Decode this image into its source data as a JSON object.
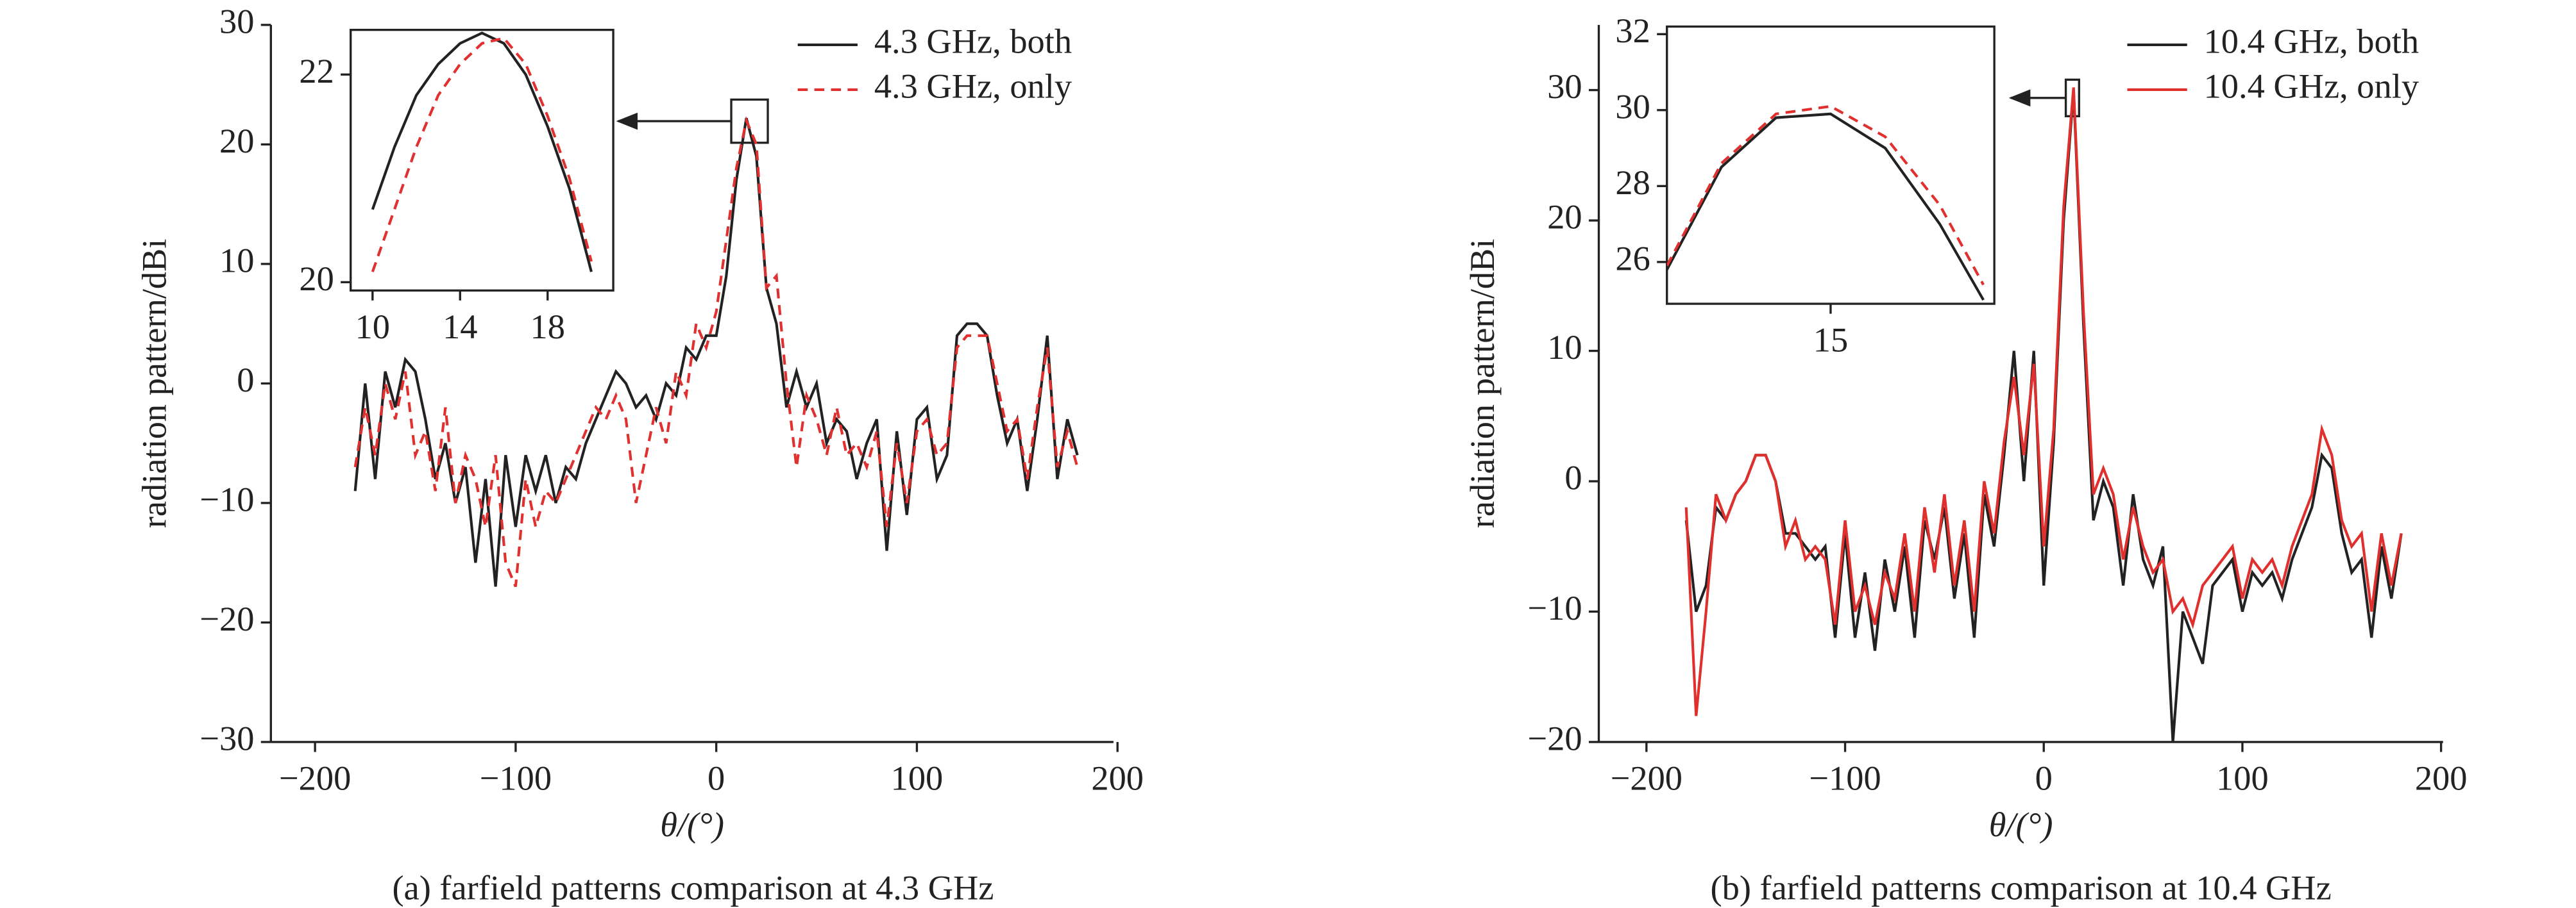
{
  "chart_data": [
    {
      "type": "line",
      "caption": "(a) farfield patterns comparison at 4.3 GHz",
      "xlabel": "θ/(°)",
      "ylabel": "radiation pattern/dBi",
      "xlim": [
        -222,
        198
      ],
      "ylim": [
        -30,
        30
      ],
      "xticks": [
        {
          "value": -200,
          "label": "−200"
        },
        {
          "value": -100,
          "label": "−100"
        },
        0,
        100,
        200
      ],
      "yticks": [
        {
          "value": -30,
          "label": "−30"
        },
        {
          "value": -20,
          "label": "−20"
        },
        {
          "value": -10,
          "label": "−10"
        },
        0,
        10,
        20,
        30
      ],
      "legend": "upper right",
      "x": [
        -180,
        -175,
        -170,
        -165,
        -160,
        -155,
        -150,
        -145,
        -140,
        -135,
        -130,
        -125,
        -120,
        -115,
        -110,
        -105,
        -100,
        -95,
        -90,
        -85,
        -80,
        -75,
        -70,
        -65,
        -60,
        -55,
        -50,
        -45,
        -40,
        -35,
        -30,
        -25,
        -20,
        -15,
        -10,
        -5,
        0,
        5,
        10,
        15,
        20,
        25,
        30,
        35,
        40,
        45,
        50,
        55,
        60,
        65,
        70,
        75,
        80,
        85,
        90,
        95,
        100,
        105,
        110,
        115,
        120,
        125,
        130,
        135,
        140,
        145,
        150,
        155,
        160,
        165,
        170,
        175,
        180
      ],
      "series": [
        {
          "name": "4.3 GHz, both",
          "color": "#222222",
          "dash": false,
          "values": [
            -9,
            0,
            -8,
            1,
            -2,
            2,
            1,
            -3,
            -8,
            -5,
            -10,
            -7,
            -15,
            -8,
            -17,
            -6,
            -12,
            -6,
            -9,
            -6,
            -10,
            -7,
            -8,
            -5,
            -3,
            -1,
            1,
            0,
            -2,
            -1,
            -3,
            0,
            -1,
            3,
            2,
            4,
            4,
            9,
            17,
            22.2,
            19,
            8,
            5,
            -2,
            1,
            -2,
            0,
            -5,
            -3,
            -4,
            -8,
            -5,
            -3,
            -14,
            -4,
            -11,
            -3,
            -2,
            -8,
            -6,
            4,
            5,
            5,
            4,
            -1,
            -5,
            -3,
            -9,
            -3,
            4,
            -8,
            -3,
            -6
          ]
        },
        {
          "name": "4.3 GHz, only",
          "color": "#e03030",
          "dash": true,
          "values": [
            -7,
            -2,
            -6,
            0,
            -3,
            1,
            -6,
            -4,
            -9,
            -2,
            -10,
            -6,
            -8,
            -12,
            -6,
            -15,
            -17,
            -8,
            -12,
            -9,
            -10,
            -8,
            -6,
            -4,
            -2,
            -3,
            -1,
            -3,
            -10,
            -6,
            -2,
            -5,
            1,
            -1,
            5,
            3,
            6,
            12,
            18,
            22,
            20,
            8,
            9,
            0,
            -7,
            -1,
            -3,
            -6,
            -2,
            -6,
            -5,
            -7,
            -4,
            -12,
            -5,
            -10,
            -4,
            -3,
            -6,
            -5,
            3,
            4,
            4,
            4,
            0,
            -4,
            -3,
            -8,
            -2,
            3,
            -7,
            -4,
            -7
          ]
        }
      ]
    },
    {
      "type": "line",
      "xlim": [
        9,
        21
      ],
      "ylim": [
        19.92,
        22.43
      ],
      "xticks": [
        10,
        14,
        18
      ],
      "yticks": [
        20,
        22
      ],
      "x": [
        10,
        11,
        12,
        13,
        14,
        15,
        16,
        17,
        18,
        19,
        20
      ],
      "series": [
        {
          "color": "#222222",
          "dash": false,
          "values": [
            20.7,
            21.3,
            21.8,
            22.1,
            22.3,
            22.4,
            22.3,
            22.0,
            21.5,
            20.9,
            20.1
          ]
        },
        {
          "color": "#e03030",
          "dash": true,
          "values": [
            20.1,
            20.7,
            21.3,
            21.8,
            22.1,
            22.3,
            22.35,
            22.1,
            21.6,
            21.0,
            20.2
          ]
        }
      ]
    },
    {
      "type": "line",
      "caption": "(b) farfield patterns comparison at 10.4 GHz",
      "xlabel": "θ/(°)",
      "ylabel": "radiation pattern/dBi",
      "xlim": [
        -224,
        201
      ],
      "ylim": [
        -20,
        35
      ],
      "xticks": [
        {
          "value": -200,
          "label": "−200"
        },
        {
          "value": -100,
          "label": "−100"
        },
        0,
        100,
        200
      ],
      "yticks": [
        {
          "value": -20,
          "label": "−20"
        },
        {
          "value": -10,
          "label": "−10"
        },
        0,
        10,
        20,
        30
      ],
      "legend": "upper right",
      "x": [
        -180,
        -175,
        -170,
        -165,
        -160,
        -155,
        -150,
        -145,
        -140,
        -135,
        -130,
        -125,
        -120,
        -115,
        -110,
        -105,
        -100,
        -95,
        -90,
        -85,
        -80,
        -75,
        -70,
        -65,
        -60,
        -55,
        -50,
        -45,
        -40,
        -35,
        -30,
        -25,
        -20,
        -15,
        -10,
        -5,
        0,
        5,
        10,
        15,
        20,
        25,
        30,
        35,
        40,
        45,
        50,
        55,
        60,
        65,
        70,
        75,
        80,
        85,
        90,
        95,
        100,
        105,
        110,
        115,
        120,
        125,
        130,
        135,
        140,
        145,
        150,
        155,
        160,
        165,
        170,
        175,
        180
      ],
      "series": [
        {
          "name": "10.4 GHz, both",
          "color": "#222222",
          "dash": false,
          "values": [
            -3,
            -10,
            -8,
            -2,
            -3,
            -1,
            0,
            2,
            2,
            0,
            -4,
            -4,
            -5,
            -6,
            -5,
            -12,
            -4,
            -12,
            -7,
            -13,
            -6,
            -10,
            -5,
            -12,
            -3,
            -6,
            -2,
            -9,
            -4,
            -12,
            -1,
            -5,
            2,
            10,
            0,
            10,
            -8,
            3,
            20,
            30,
            12,
            -3,
            0,
            -2,
            -8,
            -1,
            -6,
            -8,
            -5,
            -20,
            -10,
            -12,
            -14,
            -8,
            -7,
            -6,
            -10,
            -7,
            -8,
            -7,
            -9,
            -6,
            -4,
            -2,
            2,
            1,
            -4,
            -7,
            -6,
            -12,
            -5,
            -9,
            -4
          ]
        },
        {
          "name": "10.4 GHz, only",
          "color": "#e0302e",
          "dash": false,
          "values": [
            -2,
            -18,
            -10,
            -1,
            -3,
            -1,
            0,
            2,
            2,
            0,
            -5,
            -3,
            -6,
            -5,
            -6,
            -11,
            -3,
            -10,
            -8,
            -11,
            -7,
            -9,
            -4,
            -10,
            -2,
            -7,
            -1,
            -8,
            -3,
            -10,
            0,
            -4,
            3,
            8,
            2,
            9,
            -5,
            4,
            21,
            30.2,
            13,
            -1,
            1,
            -1,
            -6,
            -2,
            -5,
            -7,
            -6,
            -10,
            -9,
            -11,
            -8,
            -7,
            -6,
            -5,
            -9,
            -6,
            -7,
            -6,
            -8,
            -5,
            -3,
            -1,
            4,
            2,
            -3,
            -5,
            -4,
            -10,
            -4,
            -8,
            -4
          ]
        }
      ]
    },
    {
      "type": "line",
      "xlim": [
        12,
        18
      ],
      "ylim": [
        24.9,
        32.2
      ],
      "xticks": [
        15
      ],
      "yticks": [
        26,
        28,
        30,
        32
      ],
      "x": [
        12,
        13,
        14,
        15,
        16,
        17,
        17.8
      ],
      "series": [
        {
          "color": "#222222",
          "dash": false,
          "values": [
            25.8,
            28.5,
            29.8,
            29.9,
            29.0,
            27.0,
            25.0
          ]
        },
        {
          "color": "#e0302e",
          "dash": true,
          "values": [
            25.9,
            28.6,
            29.9,
            30.1,
            29.3,
            27.5,
            25.4
          ]
        }
      ]
    }
  ]
}
